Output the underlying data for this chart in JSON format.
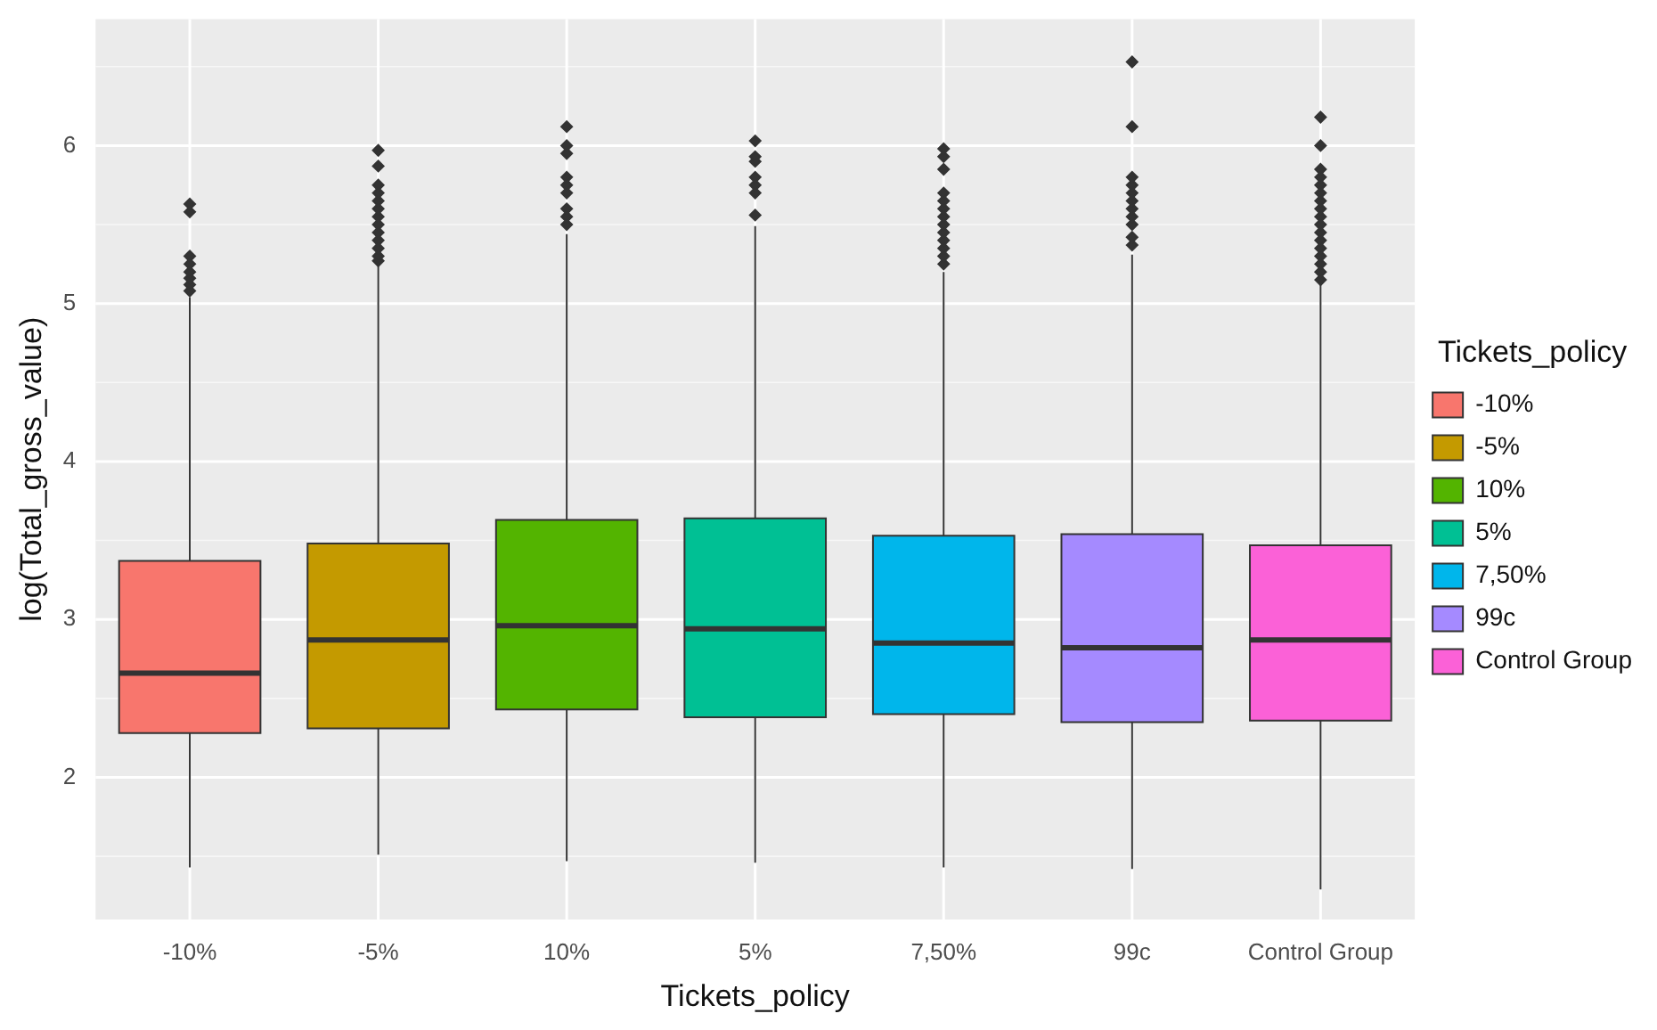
{
  "chart_data": {
    "type": "box",
    "xlabel": "Tickets_policy",
    "ylabel": "log(Total_gross_value)",
    "legend_title": "Tickets_policy",
    "legend": "right",
    "grid": true,
    "categories": [
      "-10%",
      "-5%",
      "10%",
      "5%",
      "7,50%",
      "99c",
      "Control Group"
    ],
    "ylim": [
      1.1,
      6.8
    ],
    "yticks": [
      2,
      3,
      4,
      5,
      6
    ],
    "series": [
      {
        "name": "-10%",
        "color": "#f8766d",
        "boxes": [
          {
            "low": 1.43,
            "q1": 2.28,
            "median": 2.66,
            "q3": 3.37,
            "high": 5.04,
            "outliers": [
              5.08,
              5.12,
              5.16,
              5.2,
              5.25,
              5.3,
              5.58,
              5.63
            ]
          },
          null,
          null,
          null,
          null,
          null,
          null
        ]
      },
      {
        "name": "-5%",
        "color": "#c49a00",
        "boxes": [
          null,
          {
            "low": 1.51,
            "q1": 2.31,
            "median": 2.87,
            "q3": 3.48,
            "high": 5.24,
            "outliers": [
              5.27,
              5.3,
              5.35,
              5.4,
              5.45,
              5.5,
              5.55,
              5.6,
              5.65,
              5.7,
              5.75,
              5.87,
              5.97
            ]
          },
          null,
          null,
          null,
          null,
          null
        ]
      },
      {
        "name": "10%",
        "color": "#53b400",
        "boxes": [
          null,
          null,
          {
            "low": 1.47,
            "q1": 2.43,
            "median": 2.96,
            "q3": 3.63,
            "high": 5.44,
            "outliers": [
              5.5,
              5.55,
              5.6,
              5.7,
              5.75,
              5.8,
              5.95,
              6.0,
              6.12
            ]
          },
          null,
          null,
          null,
          null
        ]
      },
      {
        "name": "5%",
        "color": "#00c094",
        "boxes": [
          null,
          null,
          null,
          {
            "low": 1.46,
            "q1": 2.38,
            "median": 2.94,
            "q3": 3.64,
            "high": 5.49,
            "outliers": [
              5.56,
              5.7,
              5.75,
              5.8,
              5.9,
              5.93,
              6.03
            ]
          },
          null,
          null,
          null
        ]
      },
      {
        "name": "7,50%",
        "color": "#00b6eb",
        "boxes": [
          null,
          null,
          null,
          null,
          {
            "low": 1.43,
            "q1": 2.4,
            "median": 2.85,
            "q3": 3.53,
            "high": 5.2,
            "outliers": [
              5.25,
              5.3,
              5.35,
              5.4,
              5.45,
              5.5,
              5.55,
              5.6,
              5.65,
              5.7,
              5.85,
              5.93,
              5.98
            ]
          },
          null,
          null
        ]
      },
      {
        "name": "99c",
        "color": "#a58aff",
        "boxes": [
          null,
          null,
          null,
          null,
          null,
          {
            "low": 1.42,
            "q1": 2.35,
            "median": 2.82,
            "q3": 3.54,
            "high": 5.31,
            "outliers": [
              5.37,
              5.42,
              5.5,
              5.55,
              5.6,
              5.65,
              5.7,
              5.75,
              5.8,
              6.12,
              6.53
            ]
          },
          null
        ]
      },
      {
        "name": "Control Group",
        "color": "#fb61d7",
        "boxes": [
          null,
          null,
          null,
          null,
          null,
          null,
          {
            "low": 1.29,
            "q1": 2.36,
            "median": 2.87,
            "q3": 3.47,
            "high": 5.12,
            "outliers": [
              5.15,
              5.2,
              5.25,
              5.3,
              5.35,
              5.4,
              5.45,
              5.5,
              5.55,
              5.6,
              5.65,
              5.7,
              5.75,
              5.8,
              5.85,
              6.0,
              6.18
            ]
          }
        ]
      }
    ]
  }
}
